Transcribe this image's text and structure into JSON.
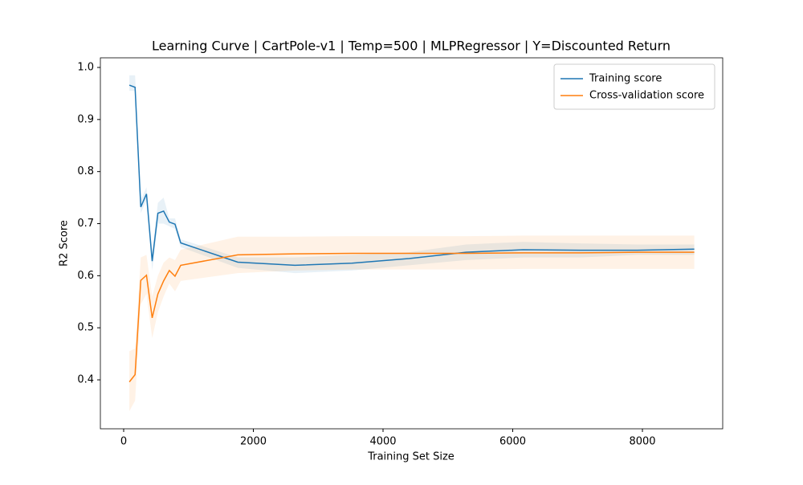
{
  "chart_data": {
    "type": "line",
    "title": "Learning Curve | CartPole-v1 | Temp=500 | MLPRegressor | Y=Discounted Return",
    "x_label": "Training Set Size",
    "y_label": "R2 Score",
    "x": [
      88,
      176,
      264,
      352,
      440,
      528,
      616,
      704,
      792,
      880,
      1760,
      2640,
      3520,
      4400,
      5280,
      6160,
      7040,
      7920,
      8800
    ],
    "series": [
      {
        "name": "Training score",
        "color": "#1f77b4",
        "values": [
          0.966,
          0.962,
          0.732,
          0.757,
          0.628,
          0.72,
          0.724,
          0.703,
          0.699,
          0.663,
          0.626,
          0.62,
          0.624,
          0.633,
          0.645,
          0.65,
          0.649,
          0.649,
          0.651
        ],
        "band": {
          "lower": [
            0.955,
            0.955,
            0.72,
            0.745,
            0.61,
            0.7,
            0.7,
            0.695,
            0.69,
            0.655,
            0.615,
            0.605,
            0.61,
            0.62,
            0.63,
            0.635,
            0.635,
            0.64,
            0.64
          ],
          "upper": [
            0.985,
            0.985,
            0.745,
            0.77,
            0.645,
            0.74,
            0.75,
            0.71,
            0.71,
            0.67,
            0.635,
            0.635,
            0.64,
            0.645,
            0.66,
            0.665,
            0.662,
            0.66,
            0.66
          ]
        }
      },
      {
        "name": "Cross-validation score",
        "color": "#ff7f0e",
        "values": [
          0.396,
          0.41,
          0.591,
          0.601,
          0.519,
          0.565,
          0.59,
          0.61,
          0.599,
          0.62,
          0.64,
          0.642,
          0.643,
          0.643,
          0.643,
          0.644,
          0.644,
          0.645,
          0.645
        ],
        "band": {
          "lower": [
            0.34,
            0.36,
            0.545,
            0.565,
            0.48,
            0.53,
            0.56,
            0.585,
            0.57,
            0.59,
            0.605,
            0.61,
            0.612,
            0.612,
            0.612,
            0.613,
            0.613,
            0.613,
            0.613
          ],
          "upper": [
            0.455,
            0.46,
            0.635,
            0.64,
            0.56,
            0.6,
            0.625,
            0.635,
            0.63,
            0.65,
            0.675,
            0.675,
            0.676,
            0.676,
            0.676,
            0.677,
            0.677,
            0.677,
            0.677
          ]
        }
      }
    ],
    "xlim": [
      -359,
      9238
    ],
    "ylim": [
      0.306,
      1.0185
    ],
    "xticks": [
      0,
      2000,
      4000,
      6000,
      8000
    ],
    "yticks": [
      0.4,
      0.5,
      0.6,
      0.7,
      0.8,
      0.9,
      {
        "value": 1.0,
        "label": "1.0"
      }
    ],
    "grid": false,
    "legend": "upper right"
  }
}
